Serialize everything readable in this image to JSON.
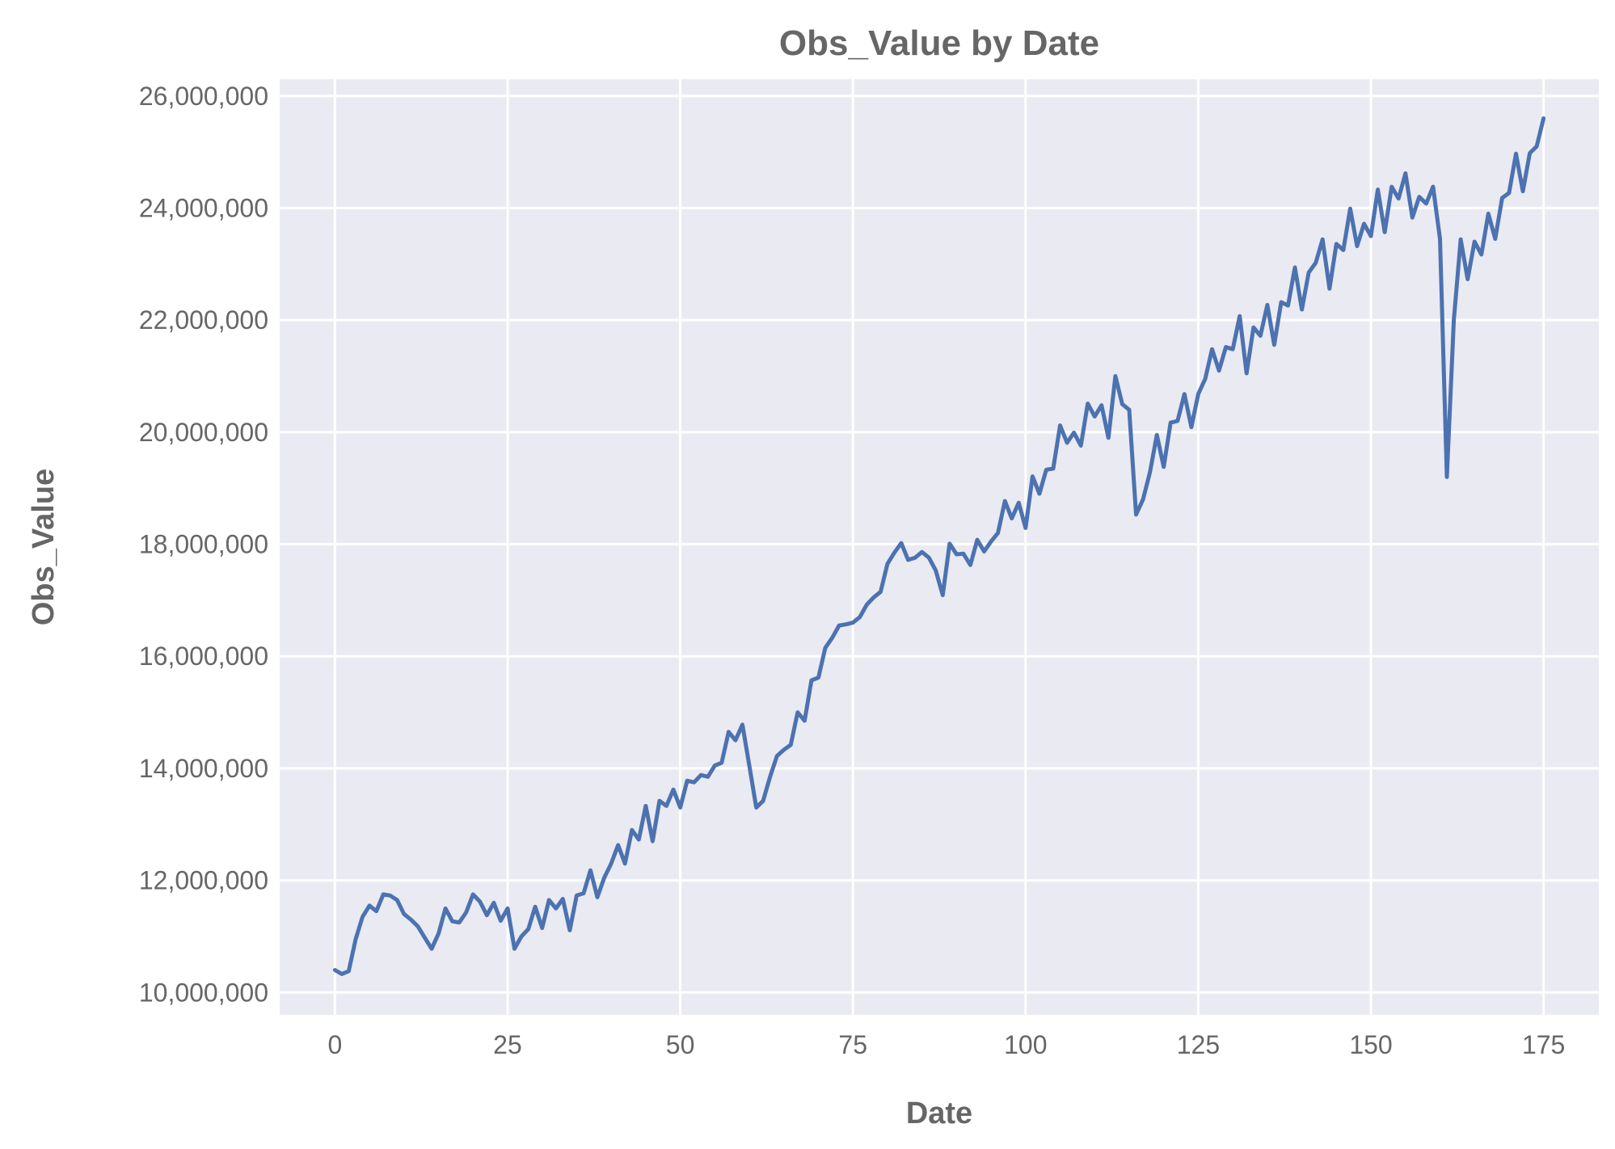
{
  "chart_data": {
    "type": "line",
    "title": "Obs_Value by Date",
    "xlabel": "Date",
    "ylabel": "Obs_Value",
    "xlim": [
      -8,
      183
    ],
    "ylim": [
      9600000,
      26300000
    ],
    "x_ticks": [
      0,
      25,
      50,
      75,
      100,
      125,
      150,
      175
    ],
    "x_tick_labels": [
      "0",
      "25",
      "50",
      "75",
      "100",
      "125",
      "150",
      "175"
    ],
    "y_ticks": [
      10000000,
      12000000,
      14000000,
      16000000,
      18000000,
      20000000,
      22000000,
      24000000,
      26000000
    ],
    "y_tick_labels": [
      "10,000,000",
      "12,000,000",
      "14,000,000",
      "16,000,000",
      "18,000,000",
      "20,000,000",
      "22,000,000",
      "24,000,000",
      "26,000,000"
    ],
    "grid": true,
    "colors": {
      "background": "#eaeaf2",
      "grid": "#ffffff",
      "line": "#4c72b0",
      "text": "#666666"
    },
    "x": [
      0,
      1,
      2,
      3,
      4,
      5,
      6,
      7,
      8,
      9,
      10,
      11,
      12,
      13,
      14,
      15,
      16,
      17,
      18,
      19,
      20,
      21,
      22,
      23,
      24,
      25,
      26,
      27,
      28,
      29,
      30,
      31,
      32,
      33,
      34,
      35,
      36,
      37,
      38,
      39,
      40,
      41,
      42,
      43,
      44,
      45,
      46,
      47,
      48,
      49,
      50,
      51,
      52,
      53,
      54,
      55,
      56,
      57,
      58,
      59,
      60,
      61,
      62,
      63,
      64,
      65,
      66,
      67,
      68,
      69,
      70,
      71,
      72,
      73,
      74,
      75,
      76,
      77,
      78,
      79,
      80,
      81,
      82,
      83,
      84,
      85,
      86,
      87,
      88,
      89,
      90,
      91,
      92,
      93,
      94,
      95,
      96,
      97,
      98,
      99,
      100,
      101,
      102,
      103,
      104,
      105,
      106,
      107,
      108,
      109,
      110,
      111,
      112,
      113,
      114,
      115,
      116,
      117,
      118,
      119,
      120,
      121,
      122,
      123,
      124,
      125,
      126,
      127,
      128,
      129,
      130,
      131,
      132,
      133,
      134,
      135,
      136,
      137,
      138,
      139,
      140,
      141,
      142,
      143,
      144,
      145,
      146,
      147,
      148,
      149,
      150,
      151,
      152,
      153,
      154,
      155,
      156,
      157,
      158,
      159,
      160,
      161,
      162,
      163,
      164,
      165,
      166,
      167,
      168,
      169,
      170,
      171,
      172,
      173,
      174,
      175
    ],
    "series": [
      {
        "values": [
          10400000,
          10330000,
          10380000,
          10950000,
          11350000,
          11550000,
          11450000,
          11750000,
          11730000,
          11650000,
          11400000,
          11300000,
          11180000,
          10980000,
          10780000,
          11050000,
          11500000,
          11270000,
          11250000,
          11430000,
          11750000,
          11620000,
          11380000,
          11600000,
          11280000,
          11500000,
          10780000,
          11000000,
          11130000,
          11530000,
          11150000,
          11650000,
          11500000,
          11670000,
          11110000,
          11730000,
          11770000,
          12180000,
          11700000,
          12050000,
          12300000,
          12630000,
          12300000,
          12900000,
          12730000,
          13330000,
          12700000,
          13420000,
          13330000,
          13620000,
          13300000,
          13780000,
          13750000,
          13880000,
          13850000,
          14050000,
          14100000,
          14650000,
          14500000,
          14780000,
          14050000,
          13300000,
          13420000,
          13850000,
          14220000,
          14330000,
          14420000,
          15000000,
          14850000,
          15570000,
          15620000,
          16150000,
          16330000,
          16550000,
          16570000,
          16600000,
          16700000,
          16920000,
          17050000,
          17150000,
          17650000,
          17850000,
          18020000,
          17720000,
          17760000,
          17860000,
          17760000,
          17530000,
          17090000,
          18010000,
          17820000,
          17830000,
          17630000,
          18080000,
          17870000,
          18050000,
          18200000,
          18770000,
          18460000,
          18740000,
          18290000,
          19210000,
          18900000,
          19330000,
          19350000,
          20120000,
          19810000,
          19990000,
          19760000,
          20510000,
          20280000,
          20480000,
          19900000,
          21000000,
          20500000,
          20400000,
          18530000,
          18800000,
          19280000,
          19950000,
          19380000,
          20170000,
          20200000,
          20680000,
          20090000,
          20680000,
          20950000,
          21480000,
          21100000,
          21520000,
          21480000,
          22070000,
          21050000,
          21870000,
          21720000,
          22270000,
          21560000,
          22320000,
          22260000,
          22940000,
          22190000,
          22850000,
          23020000,
          23440000,
          22560000,
          23360000,
          23250000,
          23990000,
          23320000,
          23720000,
          23500000,
          24330000,
          23570000,
          24380000,
          24170000,
          24620000,
          23830000,
          24200000,
          24080000,
          24380000,
          23450000,
          19200000,
          22000000,
          23440000,
          22730000,
          23400000,
          23170000,
          23900000,
          23450000,
          24180000,
          24270000,
          24970000,
          24300000,
          24980000,
          25100000,
          25600000
        ]
      }
    ]
  }
}
